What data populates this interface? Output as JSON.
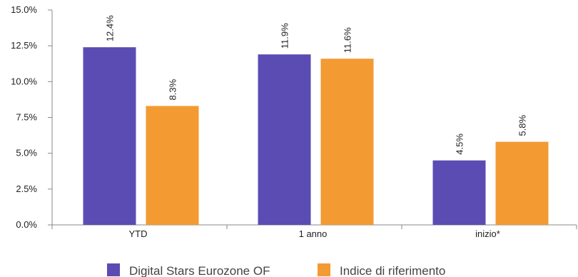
{
  "chart_data": {
    "type": "bar",
    "categories": [
      "YTD",
      "1 anno",
      "inizio*"
    ],
    "series": [
      {
        "name": "Digital Stars Eurozone OF",
        "values": [
          12.4,
          11.9,
          4.5
        ],
        "labels": [
          "12.4%",
          "11.9%",
          "4.5%"
        ],
        "color": "#5b4cb3"
      },
      {
        "name": "Indice di riferimento",
        "values": [
          8.3,
          11.6,
          5.8
        ],
        "labels": [
          "8.3%",
          "11.6%",
          "5.8%"
        ],
        "color": "#f39a33"
      }
    ],
    "ylim": [
      0,
      15
    ],
    "yticks": [
      0,
      2.5,
      5,
      7.5,
      10,
      12.5,
      15
    ],
    "ytick_labels": [
      "0.0%",
      "2.5%",
      "5.0%",
      "7.5%",
      "10.0%",
      "12.5%",
      "15.0%"
    ],
    "grid": false,
    "legend": "bottom"
  }
}
